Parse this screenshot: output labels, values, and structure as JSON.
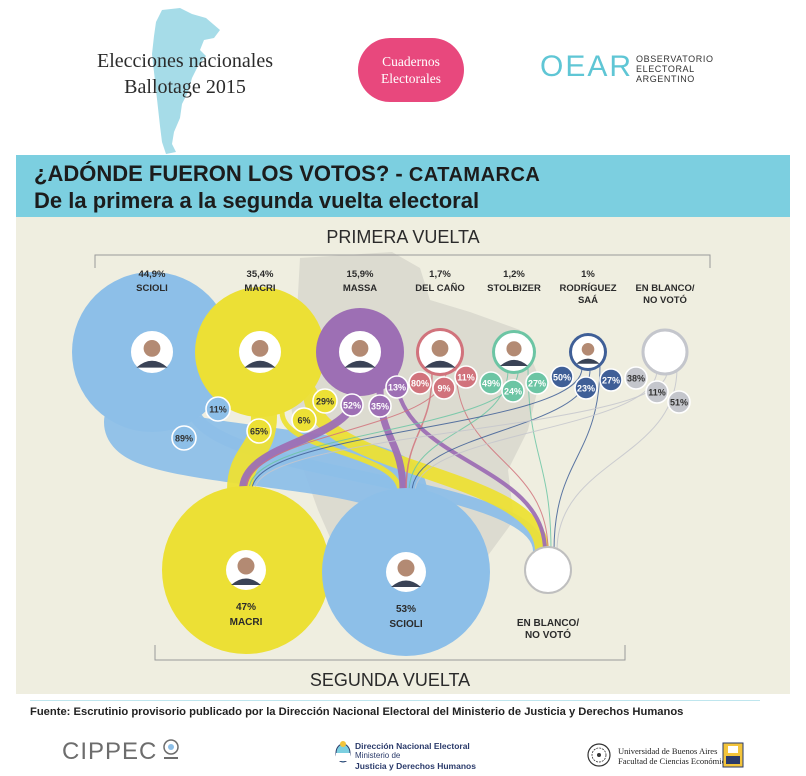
{
  "header": {
    "title_line1": "Elecciones nacionales",
    "title_line2": "Ballotage 2015",
    "badge_line1": "Cuadernos",
    "badge_line2": "Electorales",
    "oear_word": "OEAR",
    "oear_sub1": "OBSERVATORIO",
    "oear_sub2": "ELECTORAL",
    "oear_sub3": "ARGENTINO"
  },
  "banner": {
    "line1": "¿ADÓNDE FUERON LOS VOTOS? - ",
    "line1_sub": "CATAMARCA",
    "line2": "De la primera a la segunda vuelta electoral"
  },
  "sections": {
    "first_round": "PRIMERA VUELTA",
    "second_round": "SEGUNDA VUELTA"
  },
  "first_round": [
    {
      "name_l1": "SCIOLI",
      "name_l2": "",
      "pct_label": "44,9%",
      "color": "#8dbfe8",
      "flows": [
        {
          "label": "11%",
          "to": "blank"
        },
        {
          "label": "89%",
          "to": "scioli"
        }
      ]
    },
    {
      "name_l1": "MACRI",
      "name_l2": "",
      "pct_label": "35,4%",
      "color": "#ece035",
      "flows": [
        {
          "label": "65%",
          "to": "macri"
        },
        {
          "label": "6%",
          "to": "scioli"
        },
        {
          "label": "29%",
          "to": "blank"
        }
      ]
    },
    {
      "name_l1": "MASSA",
      "name_l2": "",
      "pct_label": "15,9%",
      "color": "#9d6fb4",
      "flows": [
        {
          "label": "52%",
          "to": "macri"
        },
        {
          "label": "35%",
          "to": "scioli"
        },
        {
          "label": "13%",
          "to": "blank"
        }
      ]
    },
    {
      "name_l1": "DEL CAÑO",
      "name_l2": "",
      "pct_label": "1,7%",
      "color": "#d1737c",
      "flows": [
        {
          "label": "80%",
          "to": "scioli"
        },
        {
          "label": "9%",
          "to": "macri"
        },
        {
          "label": "11%",
          "to": "blank"
        }
      ]
    },
    {
      "name_l1": "STOLBIZER",
      "name_l2": "",
      "pct_label": "1,2%",
      "color": "#6cc5a4",
      "flows": [
        {
          "label": "49%",
          "to": "scioli"
        },
        {
          "label": "24%",
          "to": "macri"
        },
        {
          "label": "27%",
          "to": "blank"
        }
      ]
    },
    {
      "name_l1": "RODRÍGUEZ",
      "name_l2": "SAÁ",
      "pct_label": "1%",
      "color": "#3f5f97",
      "flows": [
        {
          "label": "50%",
          "to": "macri"
        },
        {
          "label": "23%",
          "to": "scioli"
        },
        {
          "label": "27%",
          "to": "blank"
        }
      ]
    },
    {
      "name_l1": "EN BLANCO/",
      "name_l2": "NO VOTÓ",
      "pct_label": "",
      "color": "#c4c6cc",
      "flows": [
        {
          "label": "38%",
          "to": "scioli"
        },
        {
          "label": "11%",
          "to": "macri"
        },
        {
          "label": "51%",
          "to": "blank"
        }
      ]
    }
  ],
  "second_round": [
    {
      "name_l1": "MACRI",
      "name_l2": "",
      "pct_label": "47%",
      "color": "#ece035"
    },
    {
      "name_l1": "SCIOLI",
      "name_l2": "",
      "pct_label": "53%",
      "color": "#8dbfe8"
    },
    {
      "name_l1": "EN BLANCO/",
      "name_l2": "NO VOTÓ",
      "pct_label": "",
      "color": "#ffffff"
    }
  ],
  "colors": {
    "banner": "#7ccfe0",
    "panel": "#efeee0",
    "scioli": "#8dbfe8",
    "macri": "#ece035",
    "massa": "#9d6fb4",
    "delcano": "#d1737c",
    "stolbizer": "#6cc5a4",
    "rsaa": "#3f5f97",
    "blank": "#c4c6cc",
    "badge": "#e8487d"
  },
  "footer": {
    "source": "Fuente: Escrutinio provisorio publicado por la Dirección Nacional Electoral del Ministerio de Justicia y Derechos Humanos",
    "cippec": "CIPPEC",
    "dne_l1": "Dirección Nacional Electoral",
    "dne_l2": "Ministerio de",
    "dne_l3": "Justicia y Derechos Humanos",
    "uba_l1": "Universidad de Buenos Aires",
    "uba_l2": "Facultad de Ciencias Económicas"
  }
}
